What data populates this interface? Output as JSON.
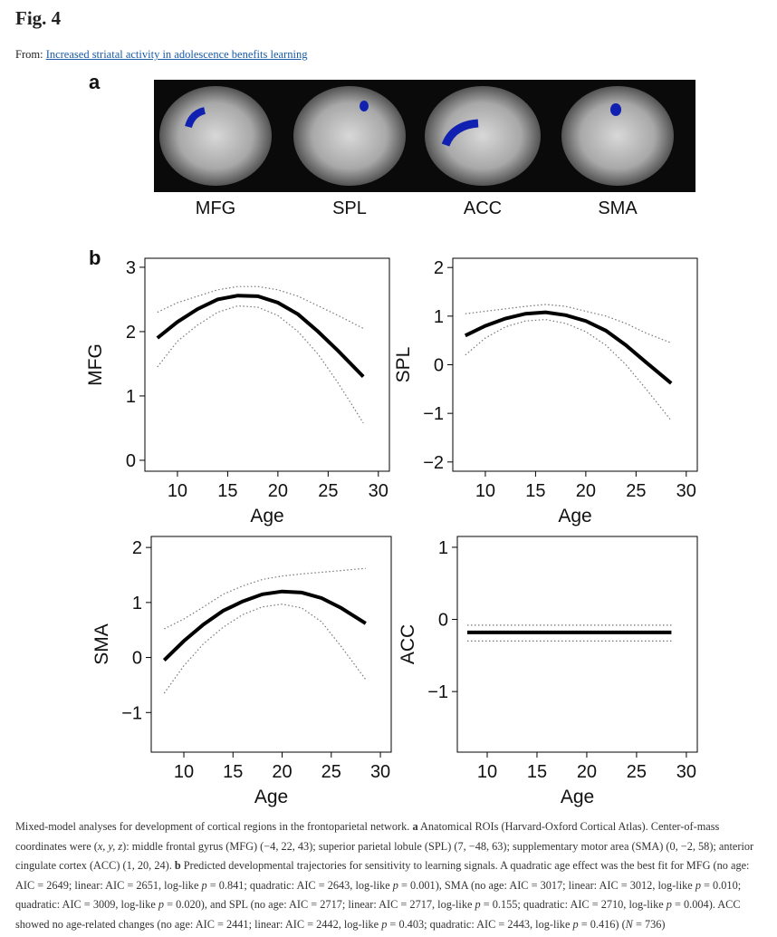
{
  "header": {
    "title": "Fig. 4",
    "from_label": "From:",
    "link": "Increased striatal activity in adolescence benefits learning"
  },
  "panel_a": {
    "label": "a",
    "rois": [
      "MFG",
      "SPL",
      "ACC",
      "SMA"
    ]
  },
  "panel_b": {
    "label": "b"
  },
  "chart_data": [
    {
      "type": "line",
      "ylabel": "MFG",
      "xlabel": "Age",
      "x": [
        8,
        10,
        12,
        14,
        16,
        18,
        20,
        22,
        24,
        26,
        28.5
      ],
      "series": [
        {
          "color": "#000000",
          "linestyle": "solid",
          "values": [
            1.9,
            2.15,
            2.35,
            2.5,
            2.56,
            2.55,
            2.45,
            2.27,
            2.0,
            1.7,
            1.3
          ]
        },
        {
          "color": "#777777",
          "linestyle": "dotted",
          "values": [
            1.45,
            1.85,
            2.1,
            2.3,
            2.4,
            2.38,
            2.25,
            2.0,
            1.65,
            1.2,
            0.58
          ]
        },
        {
          "color": "#777777",
          "linestyle": "dotted",
          "values": [
            2.3,
            2.45,
            2.55,
            2.65,
            2.7,
            2.7,
            2.65,
            2.55,
            2.4,
            2.25,
            2.05
          ]
        }
      ],
      "xlim": [
        6.76,
        31.1
      ],
      "ylim": [
        -0.17,
        3.14
      ],
      "xticks": [
        10,
        15,
        20,
        25,
        30
      ],
      "yticks": [
        0,
        1,
        2,
        3
      ]
    },
    {
      "type": "line",
      "ylabel": "SPL",
      "xlabel": "Age",
      "x": [
        8,
        10,
        12,
        14,
        16,
        18,
        20,
        22,
        24,
        26,
        28.5
      ],
      "series": [
        {
          "color": "#000000",
          "linestyle": "solid",
          "values": [
            0.6,
            0.8,
            0.95,
            1.05,
            1.08,
            1.02,
            0.9,
            0.7,
            0.4,
            0.05,
            -0.38
          ]
        },
        {
          "color": "#777777",
          "linestyle": "dotted",
          "values": [
            0.2,
            0.55,
            0.78,
            0.9,
            0.93,
            0.85,
            0.68,
            0.4,
            0.0,
            -0.5,
            -1.15
          ]
        },
        {
          "color": "#777777",
          "linestyle": "dotted",
          "values": [
            1.05,
            1.1,
            1.15,
            1.2,
            1.24,
            1.2,
            1.1,
            1.0,
            0.85,
            0.65,
            0.45
          ]
        }
      ],
      "xlim": [
        6.76,
        31.1
      ],
      "ylim": [
        -2.19,
        2.19
      ],
      "xticks": [
        10,
        15,
        20,
        25,
        30
      ],
      "yticks": [
        {
          "value": -2,
          "label": "−2"
        },
        {
          "value": -1,
          "label": "−1"
        },
        0,
        1,
        2
      ]
    },
    {
      "type": "line",
      "ylabel": "SMA",
      "xlabel": "Age",
      "x": [
        8,
        10,
        12,
        14,
        16,
        18,
        20,
        22,
        24,
        26,
        28.5
      ],
      "series": [
        {
          "color": "#000000",
          "linestyle": "solid",
          "values": [
            -0.05,
            0.3,
            0.6,
            0.85,
            1.02,
            1.15,
            1.2,
            1.18,
            1.08,
            0.9,
            0.62
          ]
        },
        {
          "color": "#777777",
          "linestyle": "dotted",
          "values": [
            -0.65,
            -0.15,
            0.25,
            0.55,
            0.78,
            0.92,
            0.97,
            0.9,
            0.65,
            0.2,
            -0.4
          ]
        },
        {
          "color": "#777777",
          "linestyle": "dotted",
          "values": [
            0.52,
            0.7,
            0.92,
            1.15,
            1.3,
            1.42,
            1.48,
            1.52,
            1.55,
            1.58,
            1.62
          ]
        }
      ],
      "xlim": [
        6.68,
        31.1
      ],
      "ylim": [
        -1.72,
        2.2
      ],
      "xticks": [
        10,
        15,
        20,
        25,
        30
      ],
      "yticks": [
        {
          "value": -1,
          "label": "−1"
        },
        0,
        1,
        2
      ]
    },
    {
      "type": "line",
      "ylabel": "ACC",
      "xlabel": "Age",
      "x": [
        8,
        28.5
      ],
      "series": [
        {
          "color": "#000000",
          "linestyle": "solid",
          "values": [
            -0.18,
            -0.18
          ]
        },
        {
          "color": "#777777",
          "linestyle": "dotted",
          "values": [
            -0.3,
            -0.3
          ]
        },
        {
          "color": "#777777",
          "linestyle": "dotted",
          "values": [
            -0.08,
            -0.08
          ]
        }
      ],
      "xlim": [
        7.0,
        31.1
      ],
      "ylim": [
        -1.84,
        1.15
      ],
      "xticks": [
        10,
        15,
        20,
        25,
        30
      ],
      "yticks": [
        {
          "value": -1,
          "label": "−1"
        },
        0,
        1
      ]
    }
  ],
  "caption": [
    "Mixed-model analyses for development of cortical regions in the frontoparietal network. ",
    "a",
    " Anatomical ROIs (Harvard-Oxford Cortical Atlas). Center-of-mass coordinates were (",
    "x, y, z",
    "): middle frontal gyrus (MFG) (−4, 22, 43); superior parietal lobule (SPL) (7, −48, 63); supplementary motor area (SMA) (0, −2, 58); anterior cingulate cortex (ACC) (1, 20, 24). ",
    "b",
    " Predicted developmental trajectories for sensitivity to learning signals. A quadratic age effect was the best fit for MFG (no age: AIC = 2649; linear: AIC = 2651, log-like ",
    "p",
    " = 0.841; quadratic: AIC = 2643, log-like ",
    "p",
    " = 0.001), SMA (no age: AIC = 3017; linear: AIC = 3012, log-like ",
    "p",
    " = 0.010; quadratic: AIC = 3009, log-like ",
    "p",
    " = 0.020), and SPL (no age: AIC = 2717; linear: AIC = 2717, log-like ",
    "p",
    " = 0.155; quadratic: AIC = 2710, log-like ",
    "p",
    " = 0.004). ACC showed no age-related changes (no age: AIC = 2441; linear: AIC = 2442, log-like ",
    "p",
    " = 0.403; quadratic: AIC = 2443, log-like ",
    "p",
    " = 0.416) (",
    "N",
    " = 736)"
  ]
}
